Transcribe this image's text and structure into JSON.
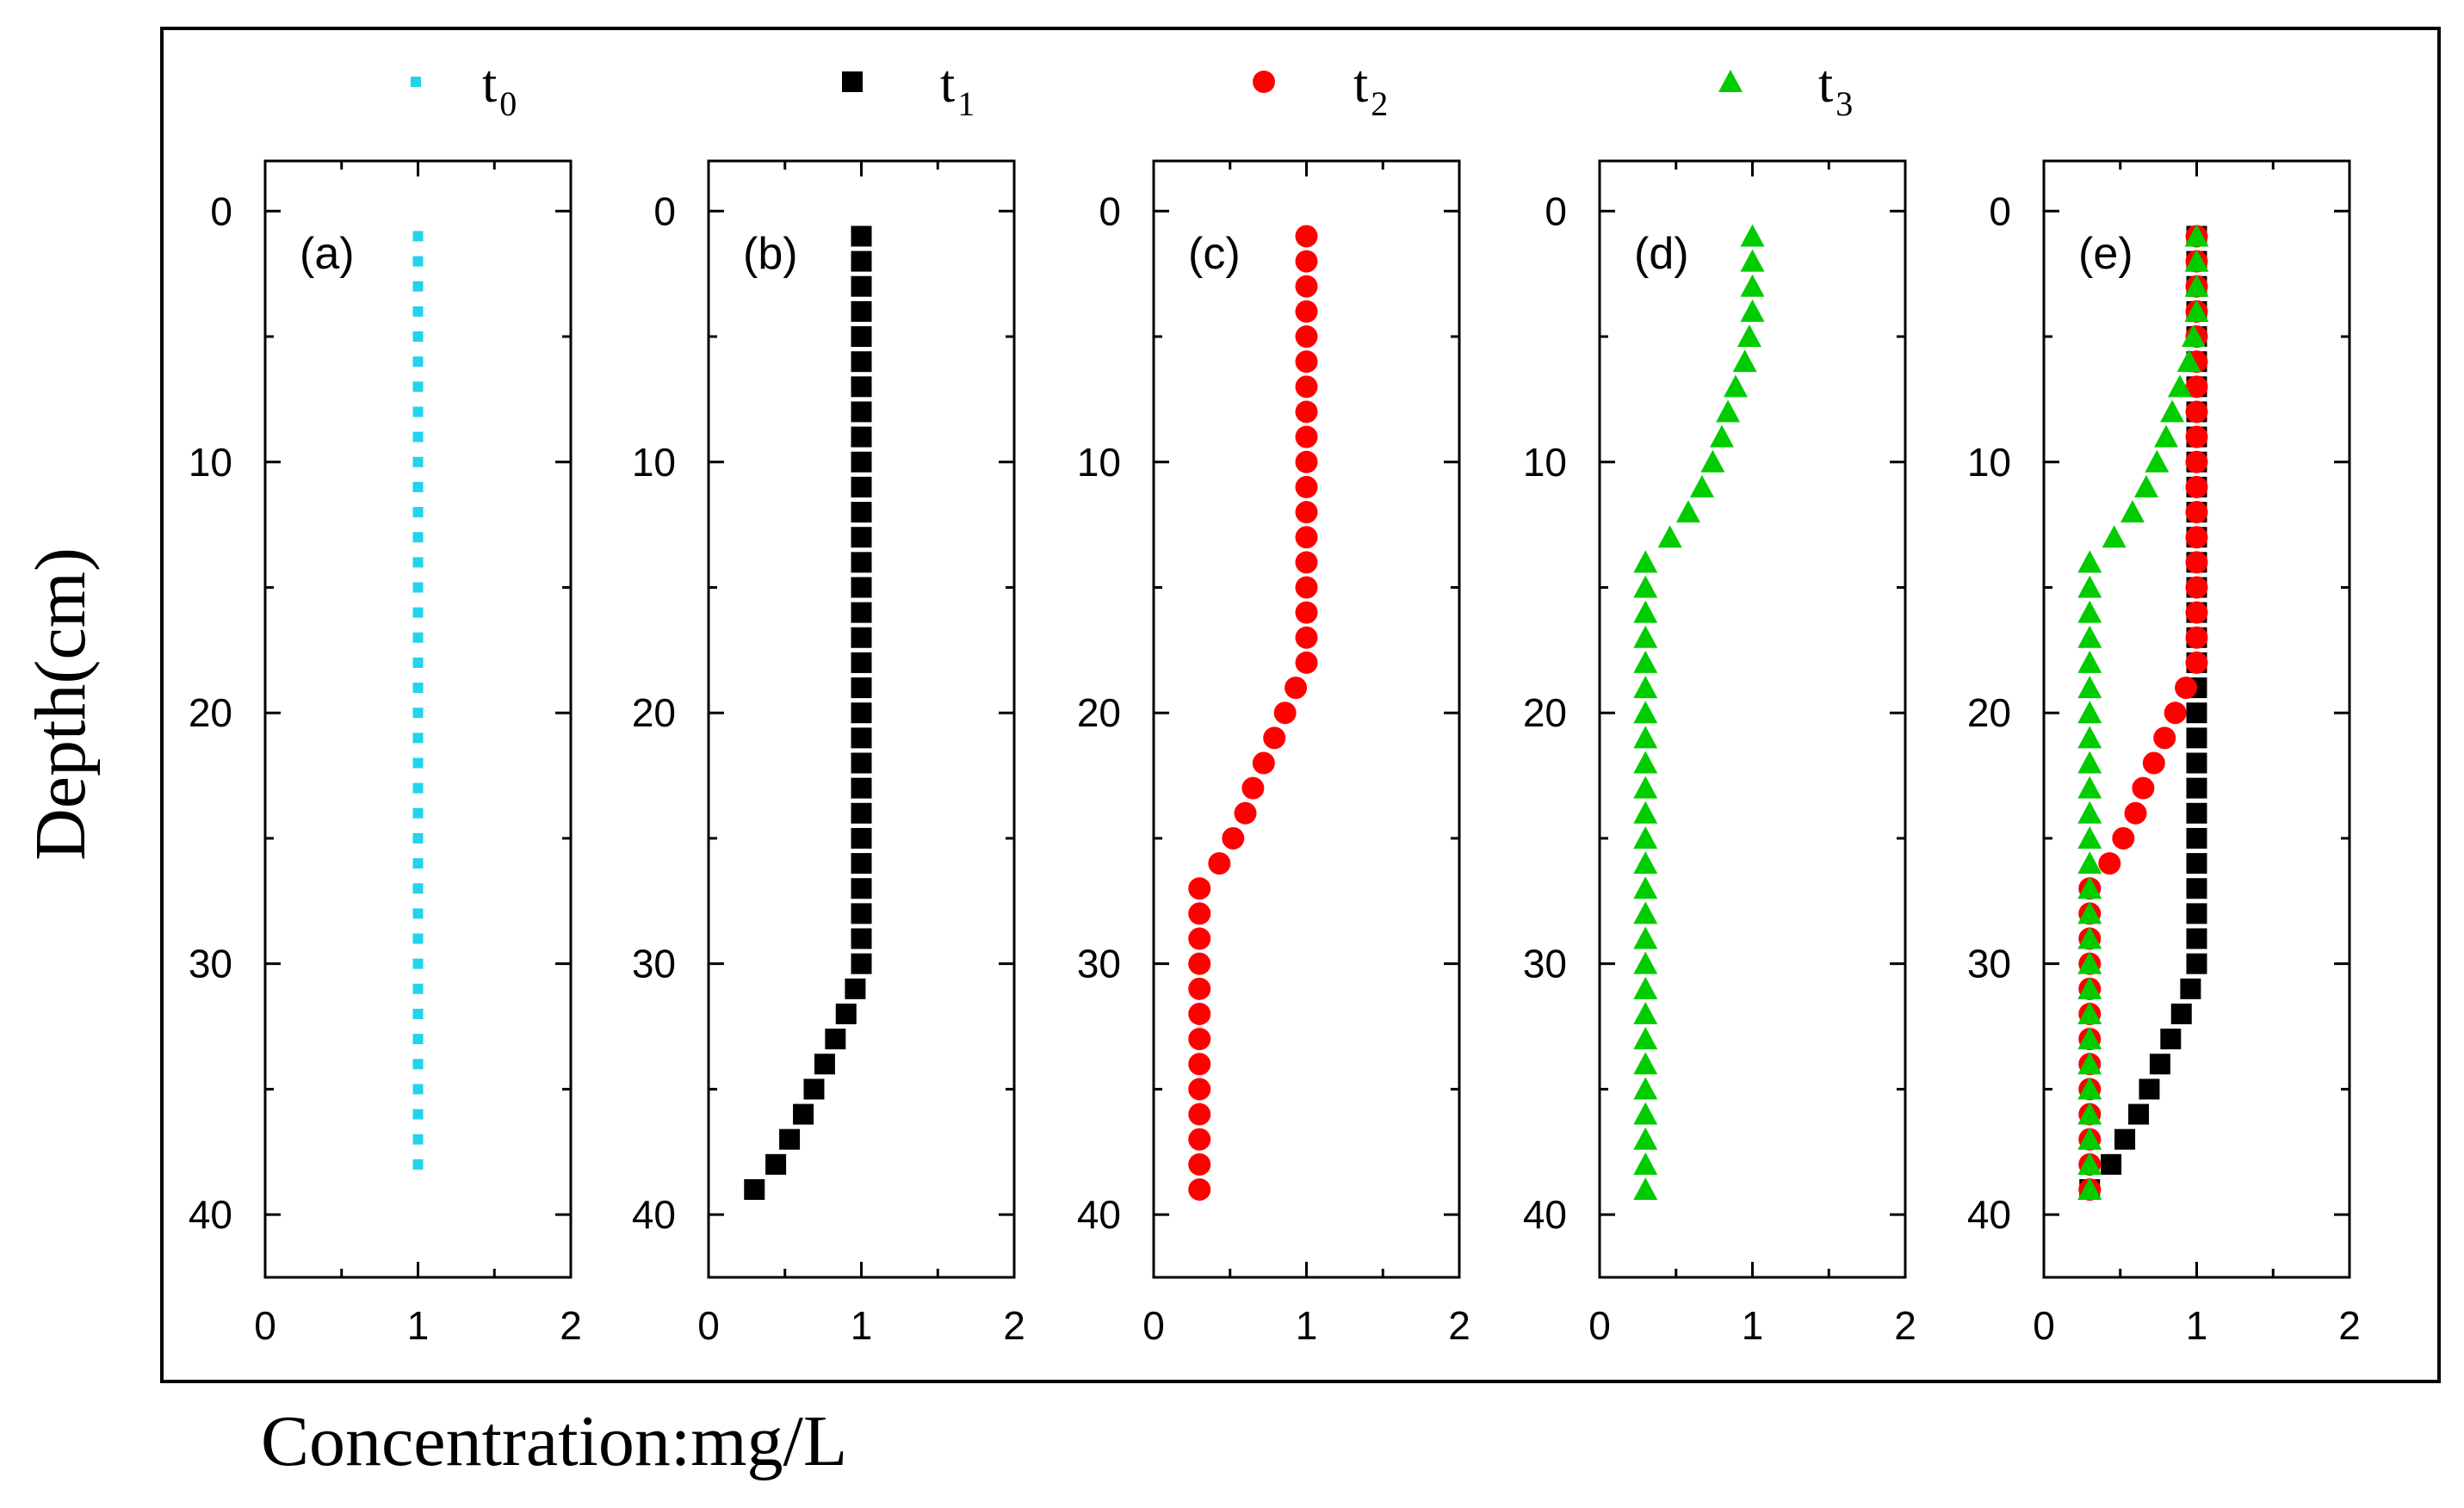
{
  "chart_data": {
    "type": "scatter",
    "layout": "five vertical profile panels sharing one legend",
    "xlabel": "Concentration:mg/L",
    "ylabel": "Depth(cm)",
    "xlim": [
      0,
      2
    ],
    "ylim": [
      42.5,
      -2
    ],
    "y_inverted": true,
    "xticks": [
      "0",
      "1",
      "2"
    ],
    "yticks": [
      "0",
      "10",
      "20",
      "30",
      "40"
    ],
    "colors": {
      "t0": "#22d3ee",
      "t1": "#000000",
      "t2": "#ff0000",
      "t3": "#00cc00"
    },
    "legend": [
      {
        "id": "t0",
        "label": "t",
        "sub": "0",
        "marker": "small-square"
      },
      {
        "id": "t1",
        "label": "t",
        "sub": "1",
        "marker": "square"
      },
      {
        "id": "t2",
        "label": "t",
        "sub": "2",
        "marker": "circle"
      },
      {
        "id": "t3",
        "label": "t",
        "sub": "3",
        "marker": "triangle"
      }
    ],
    "series": {
      "t0": {
        "marker": "small-square",
        "depth": [
          1,
          2,
          3,
          4,
          5,
          6,
          7,
          8,
          9,
          10,
          11,
          12,
          13,
          14,
          15,
          16,
          17,
          18,
          19,
          20,
          21,
          22,
          23,
          24,
          25,
          26,
          27,
          28,
          29,
          30,
          31,
          32,
          33,
          34,
          35,
          36,
          37,
          38
        ],
        "value": [
          1,
          1,
          1,
          1,
          1,
          1,
          1,
          1,
          1,
          1,
          1,
          1,
          1,
          1,
          1,
          1,
          1,
          1,
          1,
          1,
          1,
          1,
          1,
          1,
          1,
          1,
          1,
          1,
          1,
          1,
          1,
          1,
          1,
          1,
          1,
          1,
          1,
          1
        ]
      },
      "t1": {
        "marker": "square",
        "depth": [
          1,
          2,
          3,
          4,
          5,
          6,
          7,
          8,
          9,
          10,
          11,
          12,
          13,
          14,
          15,
          16,
          17,
          18,
          19,
          20,
          21,
          22,
          23,
          24,
          25,
          26,
          27,
          28,
          29,
          30,
          31,
          32,
          33,
          34,
          35,
          36,
          37,
          38,
          39
        ],
        "value": [
          1,
          1,
          1,
          1,
          1,
          1,
          1,
          1,
          1,
          1,
          1,
          1,
          1,
          1,
          1,
          1,
          1,
          1,
          1,
          1,
          1,
          1,
          1,
          1,
          1,
          1,
          1,
          1,
          1,
          1,
          0.96,
          0.9,
          0.83,
          0.76,
          0.69,
          0.62,
          0.53,
          0.44,
          0.3
        ]
      },
      "t2": {
        "marker": "circle",
        "depth": [
          1,
          2,
          3,
          4,
          5,
          6,
          7,
          8,
          9,
          10,
          11,
          12,
          13,
          14,
          15,
          16,
          17,
          18,
          19,
          20,
          21,
          22,
          23,
          24,
          25,
          26,
          27,
          28,
          29,
          30,
          31,
          32,
          33,
          34,
          35,
          36,
          37,
          38,
          39
        ],
        "value": [
          1,
          1,
          1,
          1,
          1,
          1,
          1,
          1,
          1,
          1,
          1,
          1,
          1,
          1,
          1,
          1,
          1,
          1,
          0.93,
          0.86,
          0.79,
          0.72,
          0.65,
          0.6,
          0.52,
          0.43,
          0.3,
          0.3,
          0.3,
          0.3,
          0.3,
          0.3,
          0.3,
          0.3,
          0.3,
          0.3,
          0.3,
          0.3,
          0.3
        ]
      },
      "t3": {
        "marker": "triangle",
        "depth": [
          1,
          2,
          3,
          4,
          5,
          6,
          7,
          8,
          9,
          10,
          11,
          12,
          13,
          14,
          15,
          16,
          17,
          18,
          19,
          20,
          21,
          22,
          23,
          24,
          25,
          26,
          27,
          28,
          29,
          30,
          31,
          32,
          33,
          34,
          35,
          36,
          37,
          38,
          39
        ],
        "value": [
          1,
          1,
          1,
          1,
          0.98,
          0.95,
          0.89,
          0.84,
          0.8,
          0.74,
          0.67,
          0.58,
          0.46,
          0.3,
          0.3,
          0.3,
          0.3,
          0.3,
          0.3,
          0.3,
          0.3,
          0.3,
          0.3,
          0.3,
          0.3,
          0.3,
          0.3,
          0.3,
          0.3,
          0.3,
          0.3,
          0.3,
          0.3,
          0.3,
          0.3,
          0.3,
          0.3,
          0.3,
          0.3
        ]
      }
    },
    "panels": [
      {
        "label": "(a)",
        "series": [
          "t0"
        ]
      },
      {
        "label": "(b)",
        "series": [
          "t1"
        ]
      },
      {
        "label": "(c)",
        "series": [
          "t2"
        ]
      },
      {
        "label": "(d)",
        "series": [
          "t3"
        ]
      },
      {
        "label": "(e)",
        "series": [
          "t1",
          "t2",
          "t3"
        ]
      }
    ]
  }
}
